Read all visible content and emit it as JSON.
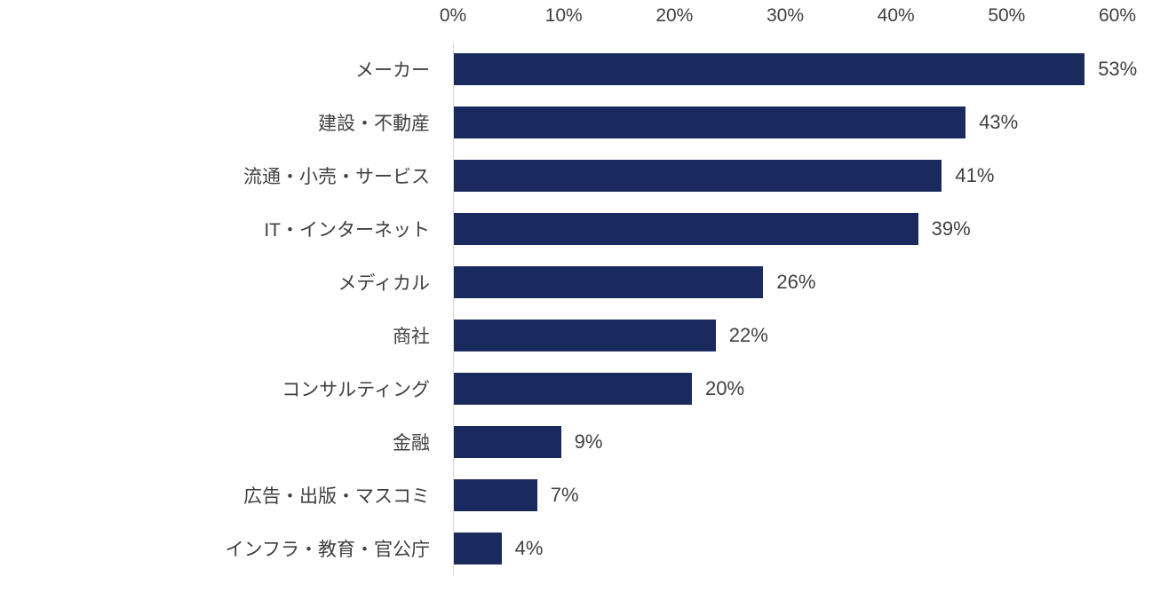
{
  "chart_data": {
    "type": "bar",
    "orientation": "horizontal",
    "title": "",
    "xlabel": "",
    "ylabel": "",
    "xlim": [
      0,
      60
    ],
    "grid": "off",
    "legend": "none",
    "axis_ticks": [
      "0%",
      "10%",
      "20%",
      "30%",
      "40%",
      "50%",
      "60%"
    ],
    "categories": [
      "メーカー",
      "建設・不動産",
      "流通・小売・サービス",
      "IT・インターネット",
      "メディカル",
      "商社",
      "コンサルティング",
      "金融",
      "広告・出版・マスコミ",
      "インフラ・教育・官公庁"
    ],
    "values": [
      53,
      43,
      41,
      39,
      26,
      22,
      20,
      9,
      7,
      4
    ],
    "value_labels": [
      "53%",
      "43%",
      "41%",
      "39%",
      "26%",
      "22%",
      "20%",
      "9%",
      "7%",
      "4%"
    ],
    "colors": {
      "bar": "#1b2a5e",
      "text": "#404040",
      "axis_line": "#d9d9d9",
      "background": "#ffffff"
    }
  }
}
